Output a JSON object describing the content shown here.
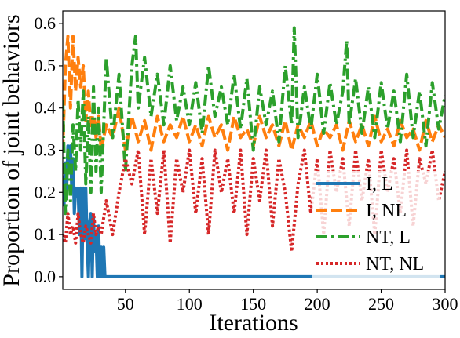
{
  "chart_data": {
    "type": "line",
    "title": "",
    "xlabel": "Iterations",
    "ylabel": "Proportion of joint behaviors",
    "xlim": [
      1,
      300
    ],
    "ylim": [
      -0.03,
      0.63
    ],
    "x_ticks": [
      50,
      100,
      150,
      200,
      250,
      300
    ],
    "y_ticks": [
      0.0,
      0.1,
      0.2,
      0.3,
      0.4,
      0.5,
      0.6
    ],
    "x_tick_labels": [
      "50",
      "100",
      "150",
      "200",
      "250",
      "300"
    ],
    "y_tick_labels": [
      "0.0",
      "0.1",
      "0.2",
      "0.3",
      "0.4",
      "0.5",
      "0.6"
    ],
    "grid": false,
    "legend_position": "center-right",
    "series": [
      {
        "name": "I, L",
        "color": "#1f77b4",
        "style": "solid",
        "x": [
          1,
          2,
          3,
          4,
          5,
          6,
          7,
          8,
          9,
          10,
          11,
          12,
          13,
          14,
          15,
          16,
          17,
          18,
          19,
          20,
          21,
          22,
          23,
          24,
          25,
          26,
          27,
          28,
          29,
          30,
          31,
          32,
          33,
          34,
          35,
          36,
          40,
          60,
          100,
          150,
          200,
          250,
          300
        ],
        "values": [
          0.24,
          0.17,
          0.27,
          0.21,
          0.31,
          0.25,
          0.31,
          0.21,
          0.28,
          0.15,
          0.21,
          0.19,
          0.21,
          0.1,
          0.21,
          0.0,
          0.21,
          0.09,
          0.21,
          0.09,
          0.0,
          0.13,
          0.15,
          0.0,
          0.14,
          0.06,
          0.1,
          0.0,
          0.12,
          0.0,
          0.07,
          0.0,
          0.07,
          0.0,
          0.0,
          0.0,
          0.0,
          0.0,
          0.0,
          0.0,
          0.0,
          0.0,
          0.0
        ]
      },
      {
        "name": "I, NL",
        "color": "#ff7f0e",
        "style": "dashed",
        "x": [
          1,
          3,
          5,
          7,
          9,
          11,
          13,
          15,
          17,
          19,
          21,
          23,
          25,
          27,
          29,
          31,
          35,
          40,
          45,
          50,
          55,
          60,
          65,
          70,
          75,
          80,
          85,
          90,
          95,
          100,
          105,
          110,
          115,
          120,
          125,
          130,
          135,
          140,
          145,
          150,
          155,
          160,
          165,
          170,
          175,
          180,
          185,
          190,
          195,
          200,
          205,
          210,
          215,
          220,
          225,
          230,
          235,
          240,
          245,
          250,
          255,
          260,
          265,
          270,
          275,
          280,
          285,
          290,
          295,
          300
        ],
        "values": [
          0.3,
          0.5,
          0.57,
          0.4,
          0.57,
          0.44,
          0.52,
          0.45,
          0.5,
          0.37,
          0.44,
          0.35,
          0.4,
          0.33,
          0.38,
          0.3,
          0.36,
          0.33,
          0.4,
          0.3,
          0.38,
          0.32,
          0.37,
          0.3,
          0.38,
          0.32,
          0.36,
          0.33,
          0.38,
          0.32,
          0.36,
          0.31,
          0.38,
          0.33,
          0.36,
          0.3,
          0.38,
          0.33,
          0.35,
          0.31,
          0.38,
          0.33,
          0.36,
          0.31,
          0.37,
          0.3,
          0.36,
          0.33,
          0.37,
          0.31,
          0.35,
          0.33,
          0.36,
          0.3,
          0.37,
          0.32,
          0.36,
          0.31,
          0.38,
          0.32,
          0.35,
          0.31,
          0.37,
          0.33,
          0.35,
          0.3,
          0.37,
          0.32,
          0.36,
          0.33
        ]
      },
      {
        "name": "NT, L",
        "color": "#2ca02c",
        "style": "dashdot",
        "x": [
          1,
          3,
          5,
          7,
          9,
          11,
          13,
          15,
          17,
          19,
          21,
          23,
          25,
          27,
          29,
          31,
          35,
          40,
          45,
          50,
          55,
          58,
          60,
          65,
          70,
          75,
          80,
          85,
          90,
          95,
          100,
          105,
          110,
          115,
          120,
          125,
          130,
          135,
          140,
          145,
          150,
          155,
          160,
          165,
          170,
          175,
          180,
          182,
          185,
          190,
          195,
          200,
          205,
          210,
          215,
          220,
          223,
          225,
          230,
          235,
          240,
          245,
          250,
          255,
          260,
          265,
          270,
          275,
          280,
          285,
          290,
          295,
          300
        ],
        "values": [
          0.42,
          0.15,
          0.3,
          0.18,
          0.36,
          0.25,
          0.42,
          0.3,
          0.44,
          0.22,
          0.38,
          0.2,
          0.45,
          0.25,
          0.4,
          0.2,
          0.52,
          0.33,
          0.48,
          0.25,
          0.5,
          0.57,
          0.4,
          0.52,
          0.38,
          0.48,
          0.36,
          0.5,
          0.37,
          0.45,
          0.36,
          0.46,
          0.34,
          0.5,
          0.38,
          0.45,
          0.36,
          0.48,
          0.35,
          0.47,
          0.3,
          0.45,
          0.36,
          0.44,
          0.32,
          0.5,
          0.36,
          0.59,
          0.33,
          0.45,
          0.35,
          0.48,
          0.34,
          0.46,
          0.36,
          0.44,
          0.56,
          0.36,
          0.47,
          0.34,
          0.45,
          0.33,
          0.46,
          0.35,
          0.44,
          0.32,
          0.48,
          0.33,
          0.44,
          0.31,
          0.46,
          0.35,
          0.43
        ]
      },
      {
        "name": "NT, NL",
        "color": "#d62728",
        "style": "dotted",
        "x": [
          1,
          3,
          5,
          7,
          9,
          11,
          13,
          15,
          17,
          19,
          21,
          23,
          25,
          27,
          29,
          31,
          35,
          40,
          45,
          50,
          55,
          60,
          65,
          70,
          75,
          80,
          85,
          90,
          95,
          100,
          105,
          110,
          115,
          120,
          125,
          130,
          135,
          140,
          145,
          150,
          155,
          160,
          165,
          170,
          175,
          180,
          185,
          190,
          195,
          200,
          205,
          210,
          215,
          220,
          225,
          230,
          235,
          240,
          245,
          250,
          255,
          260,
          265,
          270,
          275,
          280,
          285,
          290,
          295,
          300
        ],
        "values": [
          0.1,
          0.08,
          0.15,
          0.1,
          0.12,
          0.08,
          0.15,
          0.1,
          0.08,
          0.12,
          0.1,
          0.08,
          0.15,
          0.1,
          0.12,
          0.1,
          0.18,
          0.1,
          0.2,
          0.28,
          0.22,
          0.3,
          0.1,
          0.28,
          0.15,
          0.3,
          0.08,
          0.28,
          0.2,
          0.3,
          0.15,
          0.28,
          0.1,
          0.3,
          0.2,
          0.28,
          0.15,
          0.3,
          0.1,
          0.28,
          0.18,
          0.3,
          0.12,
          0.28,
          0.2,
          0.06,
          0.22,
          0.3,
          0.15,
          0.28,
          0.1,
          0.3,
          0.2,
          0.28,
          0.12,
          0.3,
          0.18,
          0.28,
          0.1,
          0.3,
          0.2,
          0.28,
          0.15,
          0.3,
          0.12,
          0.28,
          0.22,
          0.3,
          0.18,
          0.25
        ]
      }
    ]
  }
}
